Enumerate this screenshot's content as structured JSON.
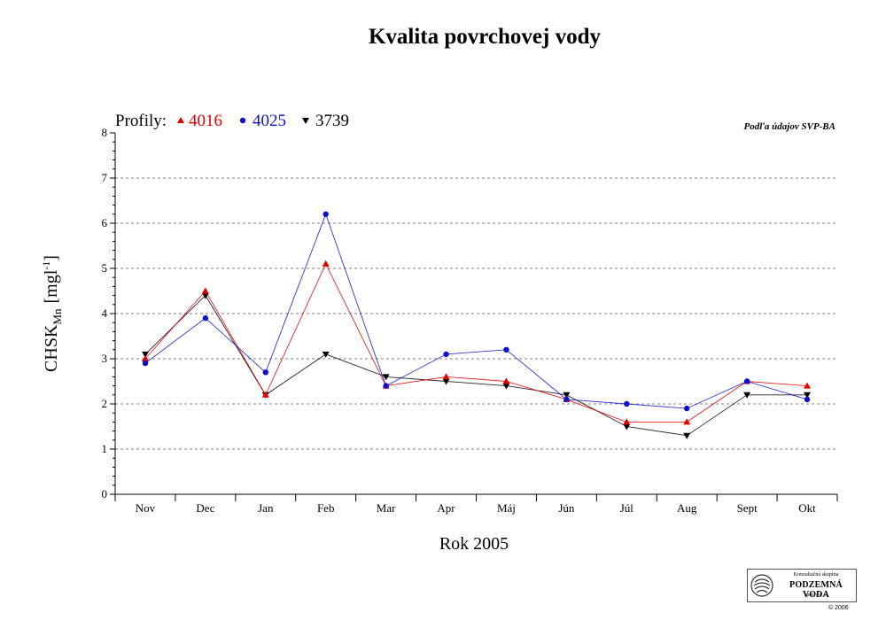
{
  "chart_data": {
    "type": "line",
    "title": "Kvalita povrchovej vody",
    "xlabel": "Rok 2005",
    "ylabel_main": "CHSK",
    "ylabel_sub": "Mn",
    "ylabel_unit_open": "[mgl",
    "ylabel_unit_sup": "-1",
    "ylabel_unit_close": "]",
    "source_note": "Podľa údajov SVP-BA",
    "legend_label": "Profily:",
    "legend_placement": "top-left",
    "grid": true,
    "ylim": [
      0,
      8
    ],
    "yticks": [
      "0",
      "1",
      "2",
      "3",
      "4",
      "5",
      "6",
      "7",
      "8"
    ],
    "categories": [
      "Nov",
      "Dec",
      "Jan",
      "Feb",
      "Mar",
      "Apr",
      "Máj",
      "Jún",
      "Júl",
      "Aug",
      "Sept",
      "Okt"
    ],
    "series": [
      {
        "name": "4016",
        "color": "#e00000",
        "marker": "triangle-up",
        "values": [
          3.0,
          4.5,
          2.2,
          5.1,
          2.4,
          2.6,
          2.5,
          2.1,
          1.6,
          1.6,
          2.5,
          2.4
        ]
      },
      {
        "name": "4025",
        "color": "#1010c8",
        "marker": "circle",
        "values": [
          2.9,
          3.9,
          2.7,
          6.2,
          2.4,
          3.1,
          3.2,
          2.1,
          2.0,
          1.9,
          2.5,
          2.1
        ]
      },
      {
        "name": "3739",
        "color": "#000000",
        "marker": "triangle-down",
        "values": [
          3.1,
          4.4,
          2.2,
          3.1,
          2.6,
          2.5,
          2.4,
          2.2,
          1.5,
          1.3,
          2.2,
          2.2
        ]
      }
    ]
  },
  "logo": {
    "line1": "Konzultačná skupina",
    "line2": "PODZEMNÁ VODA",
    "line3": "spol. s r. o."
  },
  "copyright": "© 2006"
}
